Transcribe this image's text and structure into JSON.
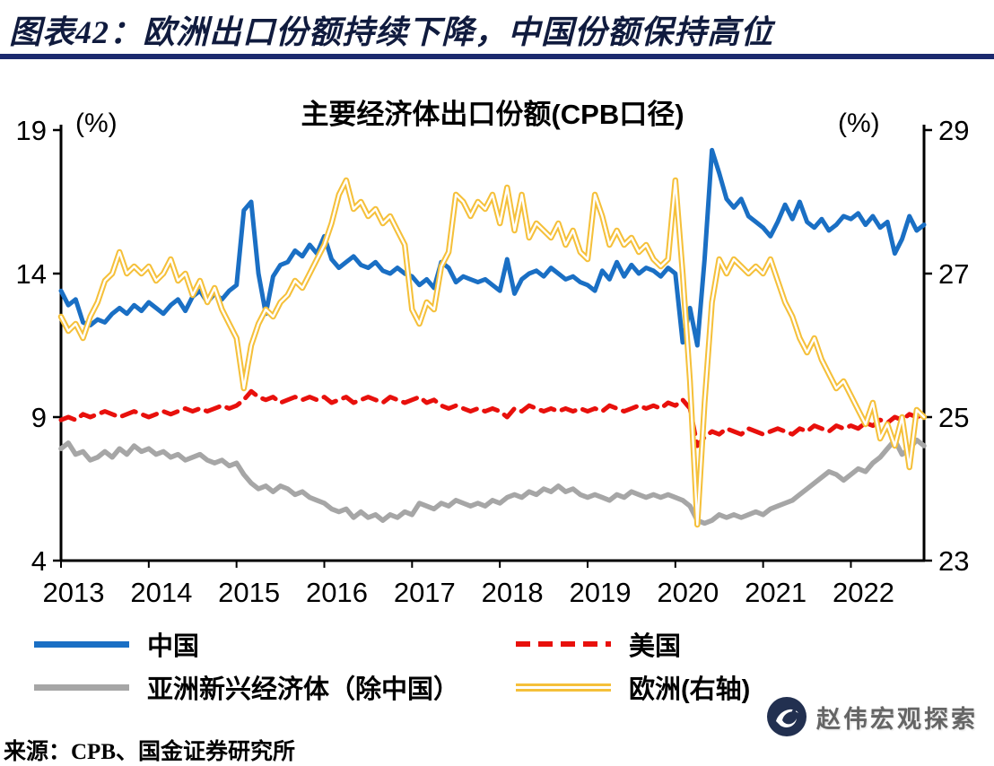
{
  "figure": {
    "title": "图表42：欧洲出口份额持续下降，中国份额保持高位"
  },
  "colors": {
    "title_text": "#101b3e",
    "header_underline": "#1b2a6e",
    "axis": "#000000",
    "watermark_circle": "#223050",
    "watermark_text": "#595959"
  },
  "chart_data": {
    "type": "line",
    "title": "主要经济体出口份额(CPB口径)",
    "grid": false,
    "legend_position": "bottom",
    "left_axis": {
      "unit": "(%)",
      "range": [
        4,
        19
      ],
      "ticks": [
        4,
        9,
        14,
        19
      ]
    },
    "right_axis": {
      "unit": "(%)",
      "range": [
        23,
        29
      ],
      "ticks": [
        23,
        25,
        27,
        29
      ]
    },
    "x_axis": {
      "labels": [
        "2013",
        "2014",
        "2015",
        "2016",
        "2017",
        "2018",
        "2019",
        "2020",
        "2021",
        "2022"
      ],
      "frequency": "monthly",
      "start": "2013-01",
      "end": "2022-11",
      "months_per_label": 12
    },
    "series": [
      {
        "id": "china",
        "name": "中国",
        "axis": "left",
        "color": "#1a6fc4",
        "style": "solid",
        "values": [
          13.4,
          12.9,
          13.1,
          12.3,
          12.2,
          12.4,
          12.3,
          12.6,
          12.8,
          12.6,
          12.9,
          12.7,
          13.0,
          12.8,
          12.6,
          12.9,
          13.1,
          12.7,
          13.2,
          13.4,
          13.0,
          13.3,
          13.1,
          13.4,
          13.6,
          16.2,
          16.5,
          14.0,
          12.6,
          13.9,
          14.3,
          14.4,
          14.8,
          14.6,
          15.0,
          14.7,
          15.3,
          14.5,
          14.2,
          14.4,
          14.6,
          14.3,
          14.2,
          14.4,
          14.1,
          14.0,
          14.2,
          14.0,
          13.9,
          13.6,
          13.8,
          13.5,
          14.4,
          14.2,
          13.7,
          13.9,
          13.8,
          13.7,
          13.8,
          13.6,
          13.4,
          14.5,
          13.3,
          13.8,
          14.0,
          14.1,
          13.9,
          14.2,
          14.0,
          13.8,
          13.9,
          13.7,
          13.6,
          13.4,
          14.1,
          13.8,
          14.4,
          13.9,
          14.3,
          14.0,
          14.2,
          14.1,
          13.9,
          14.2,
          14.0,
          11.6,
          12.8,
          11.5,
          14.5,
          18.3,
          17.5,
          16.6,
          16.3,
          16.6,
          16.0,
          15.8,
          15.6,
          15.3,
          15.8,
          16.4,
          15.9,
          16.5,
          15.8,
          15.6,
          15.9,
          15.5,
          15.7,
          16.0,
          15.9,
          16.1,
          15.7,
          16.0,
          15.6,
          15.8,
          14.7,
          15.2,
          16.0,
          15.5,
          15.7
        ]
      },
      {
        "id": "us",
        "name": "美国",
        "axis": "left",
        "color": "#e8100c",
        "style": "dashed",
        "values": [
          8.9,
          9.0,
          8.9,
          9.1,
          9.0,
          9.1,
          9.2,
          9.1,
          9.0,
          9.1,
          9.2,
          9.1,
          9.0,
          9.1,
          9.2,
          9.1,
          9.2,
          9.3,
          9.2,
          9.3,
          9.2,
          9.3,
          9.4,
          9.3,
          9.4,
          9.6,
          9.9,
          9.7,
          9.6,
          9.7,
          9.5,
          9.6,
          9.7,
          9.6,
          9.7,
          9.6,
          9.7,
          9.5,
          9.6,
          9.7,
          9.5,
          9.6,
          9.7,
          9.6,
          9.5,
          9.7,
          9.6,
          9.5,
          9.6,
          9.7,
          9.5,
          9.6,
          9.4,
          9.3,
          9.4,
          9.3,
          9.2,
          9.3,
          9.2,
          9.3,
          9.2,
          9.0,
          9.3,
          9.2,
          9.4,
          9.3,
          9.2,
          9.3,
          9.2,
          9.3,
          9.2,
          9.3,
          9.2,
          9.3,
          9.2,
          9.4,
          9.3,
          9.2,
          9.3,
          9.4,
          9.3,
          9.4,
          9.3,
          9.5,
          9.4,
          9.6,
          9.3,
          8.0,
          8.3,
          8.5,
          8.4,
          8.6,
          8.5,
          8.4,
          8.6,
          8.5,
          8.4,
          8.5,
          8.6,
          8.5,
          8.4,
          8.6,
          8.5,
          8.7,
          8.6,
          8.5,
          8.7,
          8.6,
          8.7,
          8.6,
          8.8,
          8.7,
          8.9,
          8.8,
          9.0,
          8.9,
          9.1,
          9.0,
          9.1
        ]
      },
      {
        "id": "asia_ex_china",
        "name": "亚洲新兴经济体（除中国）",
        "axis": "left",
        "color": "#a6a6a6",
        "style": "solid",
        "values": [
          7.9,
          8.1,
          7.7,
          7.8,
          7.5,
          7.6,
          7.8,
          7.6,
          7.9,
          7.7,
          8.0,
          7.8,
          7.9,
          7.7,
          7.8,
          7.6,
          7.7,
          7.5,
          7.6,
          7.7,
          7.5,
          7.4,
          7.5,
          7.3,
          7.4,
          7.0,
          6.7,
          6.5,
          6.6,
          6.4,
          6.6,
          6.5,
          6.3,
          6.4,
          6.2,
          6.1,
          6.0,
          5.8,
          5.7,
          5.8,
          5.5,
          5.7,
          5.5,
          5.6,
          5.4,
          5.6,
          5.5,
          5.7,
          5.6,
          6.0,
          5.9,
          5.8,
          6.0,
          5.9,
          6.1,
          6.0,
          5.9,
          6.0,
          5.9,
          6.1,
          6.0,
          6.2,
          6.3,
          6.2,
          6.4,
          6.3,
          6.5,
          6.4,
          6.6,
          6.4,
          6.5,
          6.3,
          6.2,
          6.3,
          6.2,
          6.1,
          6.3,
          6.2,
          6.4,
          6.3,
          6.2,
          6.3,
          6.2,
          6.3,
          6.2,
          6.1,
          5.9,
          5.4,
          5.3,
          5.4,
          5.6,
          5.5,
          5.6,
          5.5,
          5.6,
          5.7,
          5.6,
          5.8,
          5.9,
          6.0,
          6.1,
          6.3,
          6.5,
          6.7,
          6.9,
          7.1,
          7.0,
          6.8,
          7.0,
          7.2,
          7.1,
          7.4,
          7.6,
          7.9,
          8.2,
          7.7,
          7.9,
          8.2,
          8.0
        ]
      },
      {
        "id": "europe",
        "name": "欧洲(右轴)",
        "axis": "right",
        "color": "#f5c03a",
        "style": "double",
        "values": [
          26.4,
          26.2,
          26.3,
          26.1,
          26.4,
          26.6,
          26.9,
          27.0,
          27.3,
          27.0,
          27.1,
          27.0,
          27.1,
          26.9,
          27.0,
          27.2,
          26.9,
          27.0,
          26.7,
          26.9,
          26.6,
          26.8,
          26.5,
          26.3,
          26.1,
          25.4,
          26.0,
          26.3,
          26.5,
          26.4,
          26.6,
          26.7,
          26.9,
          26.8,
          27.0,
          27.2,
          27.4,
          27.7,
          28.1,
          28.3,
          27.9,
          28.0,
          27.8,
          27.9,
          27.7,
          27.8,
          27.6,
          27.4,
          26.5,
          26.3,
          26.6,
          26.5,
          27.1,
          27.3,
          28.1,
          28.0,
          27.8,
          28.0,
          27.9,
          28.1,
          27.7,
          28.2,
          27.6,
          28.1,
          27.5,
          27.7,
          27.6,
          27.5,
          27.7,
          27.4,
          27.6,
          27.3,
          27.2,
          28.1,
          27.8,
          27.4,
          27.6,
          27.4,
          27.5,
          27.3,
          27.4,
          27.2,
          27.1,
          27.2,
          28.3,
          27.0,
          25.5,
          23.5,
          25.2,
          26.6,
          27.2,
          27.0,
          27.2,
          27.1,
          27.0,
          27.1,
          27.0,
          27.2,
          26.9,
          26.6,
          26.4,
          26.1,
          25.9,
          26.1,
          25.8,
          25.6,
          25.4,
          25.5,
          25.3,
          25.1,
          24.9,
          25.2,
          24.7,
          24.9,
          24.6,
          25.0,
          24.3,
          25.1,
          25.0
        ]
      }
    ]
  },
  "source": {
    "text": "来源：CPB、国金证券研究所"
  },
  "watermark": {
    "text": "赵伟宏观探索"
  }
}
